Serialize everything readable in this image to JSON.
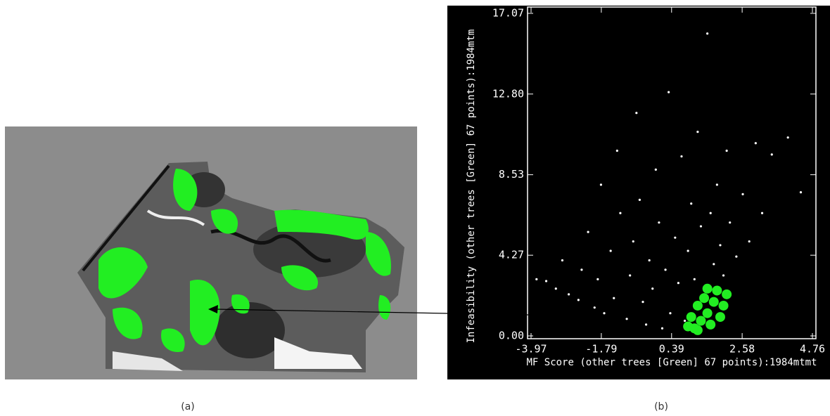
{
  "captions": {
    "a": "(a)",
    "b": "(b)"
  },
  "chart_data": {
    "type": "scatter",
    "x_label": "MF Score (other trees [Green] 67 points):1984mtmt",
    "y_label": "Infeasibility (other trees [Green] 67 points):1984mtm",
    "xlim": [
      -3.97,
      4.76
    ],
    "ylim": [
      0,
      17.07
    ],
    "xticks": [
      -3.97,
      -1.79,
      0.39,
      2.58,
      4.76
    ],
    "yticks": [
      {
        "value": 0,
        "label": "0.00"
      },
      4.27,
      8.53,
      {
        "value": 12.8,
        "label": "12.80"
      },
      17.07
    ],
    "series": [
      {
        "color": "#ffffff",
        "x": [
          -3.8,
          -3.5,
          -3.2,
          -3.0,
          -2.8,
          -2.5,
          -2.4,
          -2.2,
          -2.0,
          -1.9,
          -1.8,
          -1.7,
          -1.5,
          -1.4,
          -1.3,
          -1.2,
          -1.0,
          -0.9,
          -0.8,
          -0.7,
          -0.6,
          -0.5,
          -0.4,
          -0.3,
          -0.2,
          -0.1,
          0.0,
          0.1,
          0.2,
          0.3,
          0.35,
          0.5,
          0.6,
          0.7,
          0.8,
          0.9,
          1.0,
          1.1,
          1.2,
          1.3,
          1.4,
          1.5,
          1.6,
          1.7,
          1.8,
          1.9,
          2.0,
          2.1,
          2.2,
          2.4,
          2.6,
          2.8,
          3.0,
          3.2,
          3.5,
          4.0,
          4.4
        ],
        "values": [
          3.0,
          2.9,
          2.5,
          4.0,
          2.2,
          1.9,
          3.5,
          5.5,
          1.5,
          3.0,
          8.0,
          1.2,
          4.5,
          2.0,
          9.8,
          6.5,
          0.9,
          3.2,
          5.0,
          11.8,
          7.2,
          1.8,
          0.6,
          4.0,
          2.5,
          8.8,
          6.0,
          0.4,
          3.5,
          12.9,
          1.2,
          5.2,
          2.8,
          9.5,
          0.8,
          4.5,
          7.0,
          3.0,
          10.8,
          5.8,
          2.2,
          16.0,
          6.5,
          3.8,
          8.0,
          4.8,
          3.2,
          9.8,
          6.0,
          4.2,
          7.5,
          5.0,
          10.2,
          6.5,
          9.6,
          10.5,
          7.6
        ]
      },
      {
        "color": "#22ee22",
        "x": [
          0.9,
          1.0,
          1.1,
          1.2,
          1.3,
          1.4,
          1.5,
          1.6,
          1.7,
          1.8,
          1.9,
          2.0,
          2.1,
          1.5,
          1.2
        ],
        "values": [
          0.5,
          1.0,
          0.4,
          1.6,
          0.8,
          2.0,
          1.2,
          0.6,
          1.8,
          2.4,
          1.0,
          1.6,
          2.2,
          2.5,
          0.3
        ]
      }
    ]
  }
}
